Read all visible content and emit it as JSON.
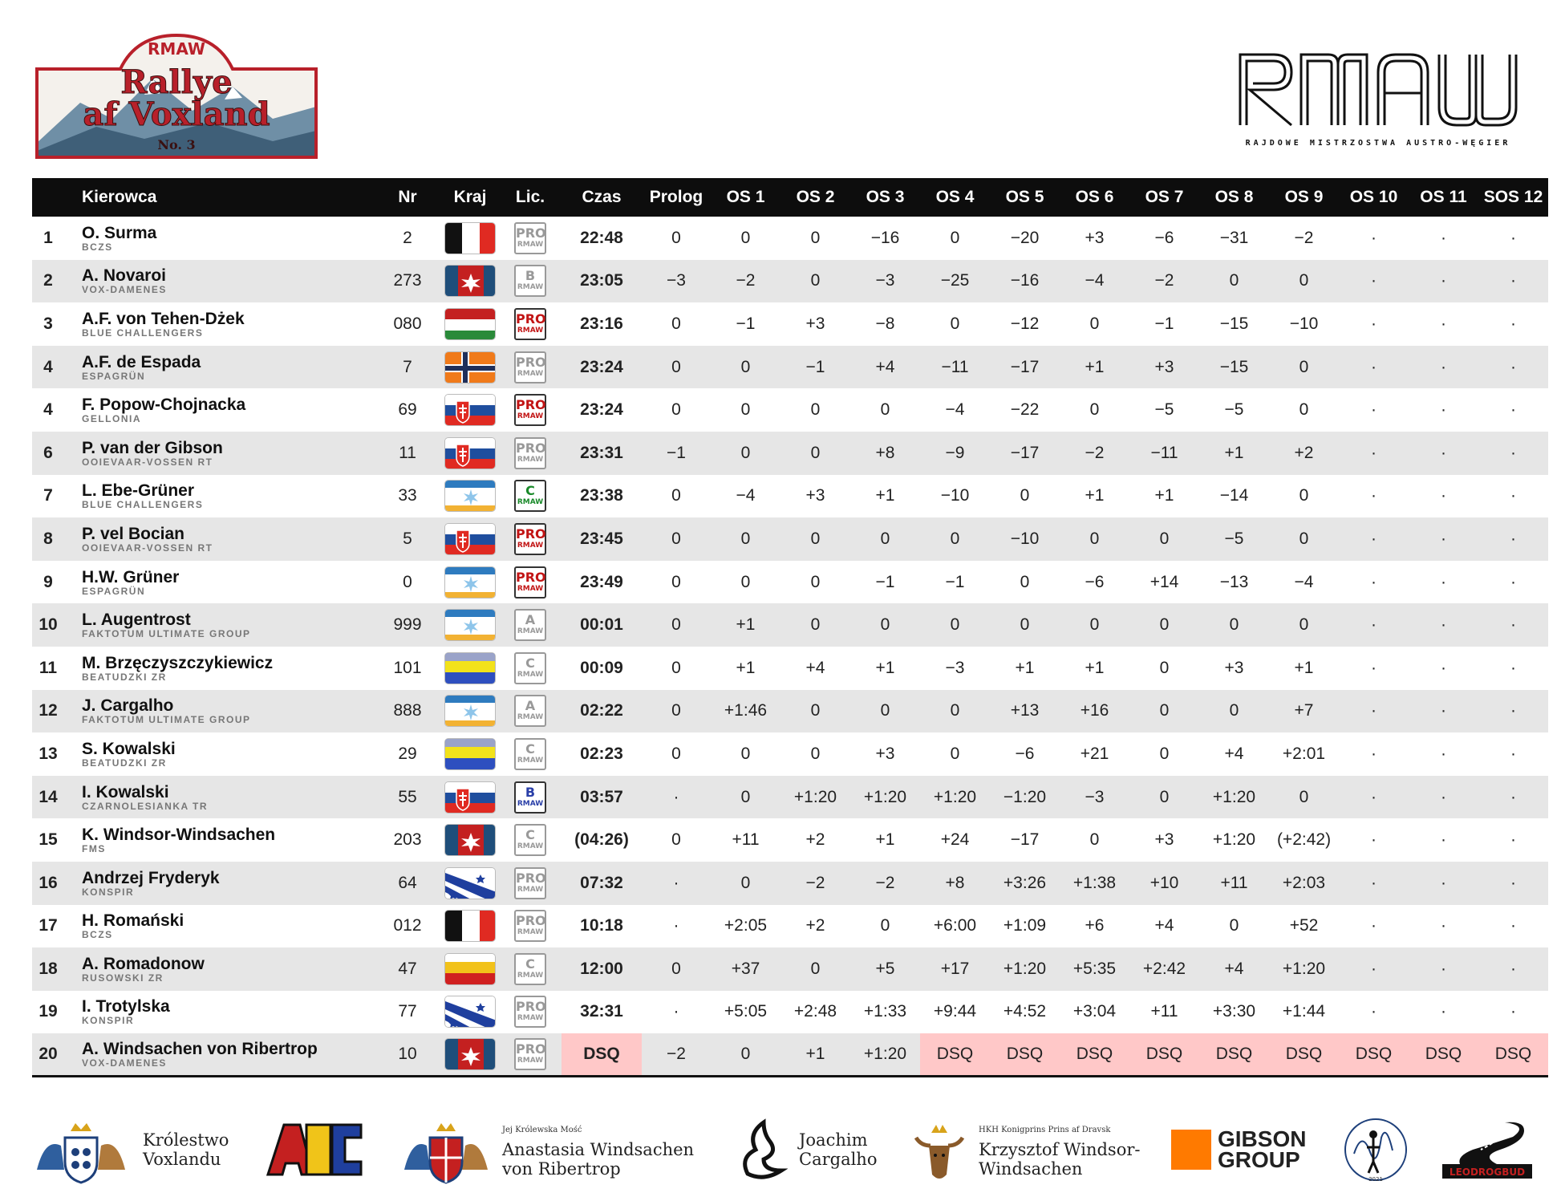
{
  "header": {
    "rally_small": "RMAW",
    "rally_line1": "Rallye",
    "rally_line2": "af Voxland",
    "rally_number": "No. 3",
    "org_logo": "RMAW",
    "org_sub": "RAJDOWE MISTRZOSTWA AUSTRO-WĘGIER"
  },
  "table": {
    "columns": [
      "",
      "Kierowca",
      "Nr",
      "Kraj",
      "Lic.",
      "Czas",
      "Prolog",
      "OS 1",
      "OS 2",
      "OS 3",
      "OS 4",
      "OS 5",
      "OS 6",
      "OS 7",
      "OS 8",
      "OS 9",
      "OS 10",
      "OS 11",
      "SOS 12"
    ],
    "rows": [
      {
        "pos": "1",
        "name": "O. Surma",
        "team": "BCZS",
        "nr": "2",
        "flag": "tricolor-vert",
        "lic": "pro-grey",
        "time": "22:48",
        "stages": [
          "0",
          "0",
          "0",
          "−16",
          "0",
          "−20",
          "+3",
          "−6",
          "−31",
          "−2",
          "·",
          "·",
          "·"
        ]
      },
      {
        "pos": "2",
        "name": "A. Novaroi",
        "team": "VOX-DAMENES",
        "nr": "273",
        "flag": "vox",
        "lic": "b-grey",
        "time": "23:05",
        "stages": [
          "−3",
          "−2",
          "0",
          "−3",
          "−25",
          "−16",
          "−4",
          "−2",
          "0",
          "0",
          "·",
          "·",
          "·"
        ]
      },
      {
        "pos": "3",
        "name": "A.F. von Tehen-Dżek",
        "team": "BLUE CHALLENGERS",
        "nr": "080",
        "flag": "red-white-green",
        "lic": "pro-red",
        "time": "23:16",
        "stages": [
          "0",
          "−1",
          "+3",
          "−8",
          "0",
          "−12",
          "0",
          "−1",
          "−15",
          "−10",
          "·",
          "·",
          "·"
        ]
      },
      {
        "pos": "4",
        "name": "A.F. de Espada",
        "team": "ESPAGRÜN",
        "nr": "7",
        "flag": "orange-cross",
        "lic": "pro-grey",
        "time": "23:24",
        "stages": [
          "0",
          "0",
          "−1",
          "+4",
          "−11",
          "−17",
          "+1",
          "+3",
          "−15",
          "0",
          "·",
          "·",
          "·"
        ]
      },
      {
        "pos": "4",
        "name": "F. Popow-Chojnacka",
        "team": "GELLONIA",
        "nr": "69",
        "flag": "slovak",
        "lic": "pro-red",
        "time": "23:24",
        "stages": [
          "0",
          "0",
          "0",
          "0",
          "−4",
          "−22",
          "0",
          "−5",
          "−5",
          "0",
          "·",
          "·",
          "·"
        ]
      },
      {
        "pos": "6",
        "name": "P. van der Gibson",
        "team": "OOIEVAAR-VOSSEN RT",
        "nr": "11",
        "flag": "slovak",
        "lic": "pro-grey",
        "time": "23:31",
        "stages": [
          "−1",
          "0",
          "0",
          "+8",
          "−9",
          "−17",
          "−2",
          "−11",
          "+1",
          "+2",
          "·",
          "·",
          "·"
        ]
      },
      {
        "pos": "7",
        "name": "L. Ebe-Grüner",
        "team": "BLUE CHALLENGERS",
        "nr": "33",
        "flag": "star-blue",
        "lic": "c-green",
        "time": "23:38",
        "stages": [
          "0",
          "−4",
          "+3",
          "+1",
          "−10",
          "0",
          "+1",
          "+1",
          "−14",
          "0",
          "·",
          "·",
          "·"
        ]
      },
      {
        "pos": "8",
        "name": "P. vel Bocian",
        "team": "OOIEVAAR-VOSSEN RT",
        "nr": "5",
        "flag": "slovak",
        "lic": "pro-red",
        "time": "23:45",
        "stages": [
          "0",
          "0",
          "0",
          "0",
          "0",
          "−10",
          "0",
          "0",
          "−5",
          "0",
          "·",
          "·",
          "·"
        ]
      },
      {
        "pos": "9",
        "name": "H.W. Grüner",
        "team": "ESPAGRÜN",
        "nr": "0",
        "flag": "star-blue",
        "lic": "pro-red",
        "time": "23:49",
        "stages": [
          "0",
          "0",
          "0",
          "−1",
          "−1",
          "0",
          "−6",
          "+14",
          "−13",
          "−4",
          "·",
          "·",
          "·"
        ]
      },
      {
        "pos": "10",
        "name": "L. Augentrost",
        "team": "FAKTOTUM ULTIMATE GROUP",
        "nr": "999",
        "flag": "star-blue",
        "lic": "a-grey",
        "time": "00:01",
        "stages": [
          "0",
          "+1",
          "0",
          "0",
          "0",
          "0",
          "0",
          "0",
          "0",
          "0",
          "·",
          "·",
          "·"
        ]
      },
      {
        "pos": "11",
        "name": "M. Brzęczyszczykiewicz",
        "team": "BEATUDZKI ZR",
        "nr": "101",
        "flag": "yellow-blue",
        "lic": "c-grey",
        "time": "00:09",
        "stages": [
          "0",
          "+1",
          "+4",
          "+1",
          "−3",
          "+1",
          "+1",
          "0",
          "+3",
          "+1",
          "·",
          "·",
          "·"
        ]
      },
      {
        "pos": "12",
        "name": "J. Cargalho",
        "team": "FAKTOTUM ULTIMATE GROUP",
        "nr": "888",
        "flag": "star-blue",
        "lic": "a-grey",
        "time": "02:22",
        "stages": [
          "0",
          "+1:46",
          "0",
          "0",
          "0",
          "+13",
          "+16",
          "0",
          "0",
          "+7",
          "·",
          "·",
          "·"
        ]
      },
      {
        "pos": "13",
        "name": "S. Kowalski",
        "team": "BEATUDZKI ZR",
        "nr": "29",
        "flag": "yellow-blue",
        "lic": "c-grey",
        "time": "02:23",
        "stages": [
          "0",
          "0",
          "0",
          "+3",
          "0",
          "−6",
          "+21",
          "0",
          "+4",
          "+2:01",
          "·",
          "·",
          "·"
        ]
      },
      {
        "pos": "14",
        "name": "I. Kowalski",
        "team": "CZARNOLESIANKA TR",
        "nr": "55",
        "flag": "slovak",
        "lic": "b-blue",
        "time": "03:57",
        "stages": [
          "·",
          "0",
          "+1:20",
          "+1:20",
          "+1:20",
          "−1:20",
          "−3",
          "0",
          "+1:20",
          "0",
          "·",
          "·",
          "·"
        ]
      },
      {
        "pos": "15",
        "name": "K. Windsor-Windsachen",
        "team": "FMS",
        "nr": "203",
        "flag": "vox",
        "lic": "c-grey",
        "time": "(04:26)",
        "stages": [
          "0",
          "+11",
          "+2",
          "+1",
          "+24",
          "−17",
          "0",
          "+3",
          "+1:20",
          "(+2:42)",
          "·",
          "·",
          "·"
        ]
      },
      {
        "pos": "16",
        "name": "Andrzej Fryderyk",
        "team": "KONSPIR",
        "nr": "64",
        "flag": "konspir",
        "lic": "pro-grey",
        "time": "07:32",
        "stages": [
          "·",
          "0",
          "−2",
          "−2",
          "+8",
          "+3:26",
          "+1:38",
          "+10",
          "+11",
          "+2:03",
          "·",
          "·",
          "·"
        ]
      },
      {
        "pos": "17",
        "name": "H. Romański",
        "team": "BCZS",
        "nr": "012",
        "flag": "tricolor-vert",
        "lic": "pro-grey",
        "time": "10:18",
        "stages": [
          "·",
          "+2:05",
          "+2",
          "0",
          "+6:00",
          "+1:09",
          "+6",
          "+4",
          "0",
          "+52",
          "·",
          "·",
          "·"
        ]
      },
      {
        "pos": "18",
        "name": "A. Romadonow",
        "team": "RUSOWSKI ZR",
        "nr": "47",
        "flag": "yellow-red",
        "lic": "c-grey",
        "time": "12:00",
        "stages": [
          "0",
          "+37",
          "0",
          "+5",
          "+17",
          "+1:20",
          "+5:35",
          "+2:42",
          "+4",
          "+1:20",
          "·",
          "·",
          "·"
        ]
      },
      {
        "pos": "19",
        "name": "I. Trotylska",
        "team": "KONSPIR",
        "nr": "77",
        "flag": "konspir",
        "lic": "pro-grey",
        "time": "32:31",
        "stages": [
          "·",
          "+5:05",
          "+2:48",
          "+1:33",
          "+9:44",
          "+4:52",
          "+3:04",
          "+11",
          "+3:30",
          "+1:44",
          "·",
          "·",
          "·"
        ]
      },
      {
        "pos": "20",
        "name": "A. Windsachen von Ribertrop",
        "team": "VOX-DAMENES",
        "nr": "10",
        "flag": "vox",
        "lic": "pro-grey",
        "time": "DSQ",
        "stages": [
          "−2",
          "0",
          "+1",
          "+1:20",
          "DSQ",
          "DSQ",
          "DSQ",
          "DSQ",
          "DSQ",
          "DSQ",
          "DSQ",
          "DSQ",
          "DSQ"
        ]
      }
    ]
  },
  "license_labels": {
    "pro": "PRO",
    "brand": "RMAW"
  },
  "sponsors": [
    {
      "id": "krolestwo",
      "text1": "Królestwo",
      "text2": "Voxlandu"
    },
    {
      "id": "akc",
      "text1": "AKC"
    },
    {
      "id": "anastasia",
      "small": "Jej Królewska Mość",
      "text1": "Anastasia Windsachen",
      "text2": "von Ribertrop"
    },
    {
      "id": "joachim",
      "text1": "Joachim",
      "text2": "Cargalho"
    },
    {
      "id": "krzysztof",
      "small": "HKH Konigprins Prins af Dravsk",
      "text1": "Krzysztof Windsor-",
      "text2": "Windsachen"
    },
    {
      "id": "gibson",
      "text1": "GIBSON",
      "text2": "GROUP"
    },
    {
      "id": "signature",
      "text1": "2021"
    },
    {
      "id": "leodrog",
      "text1": "LEODROGBUD"
    }
  ],
  "colors": {
    "header_bg": "#0d0d0d",
    "row_alt": "#e6e6e6",
    "dsq_bg": "#ffc8c8",
    "badge_red": "#b8202a",
    "gibson_orange": "#ff7a00"
  }
}
